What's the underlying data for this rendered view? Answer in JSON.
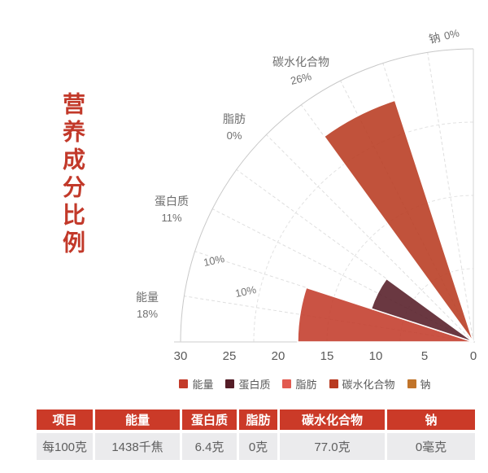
{
  "title": "营养成分比例",
  "chart_data": {
    "type": "bar",
    "subtype": "polar-rose-quarter",
    "title": "营养成分比例",
    "categories": [
      "能量",
      "蛋白质",
      "脂肪",
      "碳水化合物",
      "钠"
    ],
    "values": [
      18,
      11,
      0,
      26,
      0
    ],
    "pct_labels": [
      "18%",
      "11%",
      "0%",
      "26%",
      "0%"
    ],
    "unit": "%",
    "series_colors": [
      "#c33b2a",
      "#551d27",
      "#e25a50",
      "#b83a20",
      "#c1742a"
    ],
    "radial_axis": {
      "ticks": [
        "30",
        "25",
        "20",
        "15",
        "10",
        "5",
        "0"
      ],
      "max": 30,
      "min": 0
    },
    "inner_grid_labels": [
      "10%",
      "10%"
    ],
    "legend": [
      "能量",
      "蛋白质",
      "脂肪",
      "碳水化合物",
      "钠"
    ],
    "legend_position": "bottom",
    "grid": "dashed-polar"
  },
  "table": {
    "headers": [
      "项目",
      "能量",
      "蛋白质",
      "脂肪",
      "碳水化合物",
      "钠"
    ],
    "rows": [
      [
        "每100克",
        "1438千焦",
        "6.4克",
        "0克",
        "77.0克",
        "0毫克"
      ]
    ],
    "header_bg": "#cb3a28",
    "row_bg": "#ebebed"
  }
}
